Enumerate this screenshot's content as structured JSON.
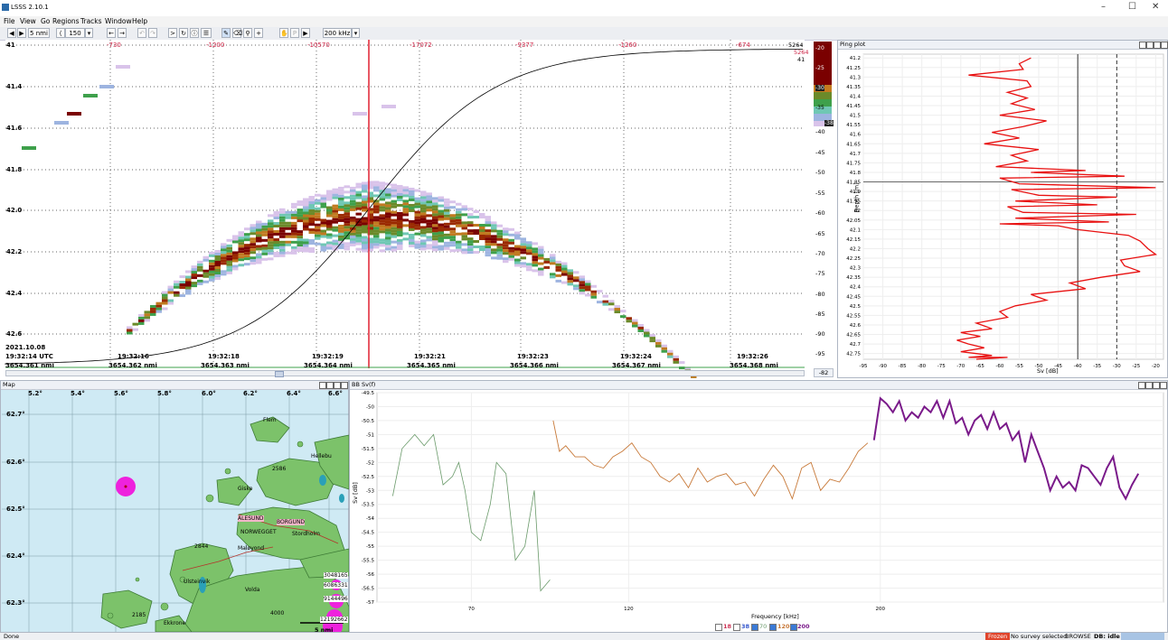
{
  "window": {
    "title": "LSSS 2.10.1",
    "controls": [
      "–",
      "☐",
      "✕"
    ]
  },
  "menu": [
    "File",
    "View",
    "Go",
    "Regions",
    "Tracks",
    "Window",
    "Help"
  ],
  "toolbar": {
    "range_nmi": "5 nmi",
    "range_m": "150 m",
    "frequency": "200 kHz"
  },
  "echogram": {
    "depth_ticks": [
      "41",
      "41.4",
      "41.6",
      "41.8",
      "42.0",
      "42.2",
      "42.4",
      "42.6"
    ],
    "top_counts": [
      "-730",
      "-1200",
      "-10570",
      "-17072",
      "-9377",
      "-1260",
      "-674"
    ],
    "date": "2021.10.08",
    "time_start": "19:32:14 UTC",
    "times": [
      "19:32:16",
      "19:32:18",
      "19:32:19",
      "19:32:21",
      "19:32:23",
      "19:32:24",
      "19:32:26"
    ],
    "dist_start": "3654.361 nmi",
    "distances": [
      "3654.362 nmi",
      "3654.363 nmi",
      "3654.364 nmi",
      "3654.365 nmi",
      "3654.366 nmi",
      "3654.367 nmi",
      "3654.368 nmi"
    ],
    "right_values": [
      "5264",
      "5264",
      "41"
    ]
  },
  "colorscale": {
    "ticks": [
      "-40",
      "-45",
      "-50",
      "-55",
      "-60",
      "-65",
      "-70",
      "-75",
      "-80",
      "-85",
      "-90",
      "-95"
    ],
    "markers": [
      "-20",
      "-25",
      "-30",
      "-35",
      "-38"
    ],
    "bottom": "-82"
  },
  "ping_plot": {
    "title": "Ping plot",
    "ylabel": "Depth [m]",
    "xlabel": "Sv [dB]",
    "y_ticks": [
      "41.2",
      "41.25",
      "41.3",
      "41.35",
      "41.4",
      "41.45",
      "41.5",
      "41.55",
      "41.6",
      "41.65",
      "41.7",
      "41.75",
      "41.8",
      "41.85",
      "41.9",
      "41.95",
      "42",
      "42.05",
      "42.1",
      "42.15",
      "42.2",
      "42.25",
      "42.3",
      "42.35",
      "42.4",
      "42.45",
      "42.5",
      "42.55",
      "42.6",
      "42.65",
      "42.7",
      "42.75"
    ],
    "x_ticks": [
      "-95",
      "-90",
      "-85",
      "-80",
      "-75",
      "-70",
      "-65",
      "-60",
      "-55",
      "-50",
      "-45",
      "-40",
      "-35",
      "-30",
      "-25",
      "-20"
    ]
  },
  "map": {
    "title": "Map",
    "lon_ticks": [
      "5.2°",
      "5.4°",
      "5.6°",
      "5.8°",
      "6.0°",
      "6.2°",
      "6.4°",
      "6.6°"
    ],
    "lat_ticks": [
      "62.7°",
      "62.6°",
      "62.5°",
      "62.4°",
      "62.3°"
    ],
    "places": [
      "Flem",
      "Hellebu",
      "Giske",
      "ALESUND",
      "BORGUND",
      "NORWEGGET",
      "Stordholm",
      "Maløyond",
      "Ulsteinvik",
      "Volda",
      "Ekkrone"
    ],
    "elevations": [
      "2586",
      "2844",
      "2185",
      "4000"
    ],
    "counts": [
      "3048165",
      "6086331",
      "9144496",
      "12192662"
    ],
    "scale": "5 nmi"
  },
  "bb_plot": {
    "title": "BB Sv(f)",
    "ylabel": "Sv [dB]",
    "xlabel": "Frequency [kHz]",
    "y_ticks": [
      "-49.5",
      "-50",
      "-50.5",
      "-51",
      "-51.5",
      "-52",
      "-52.5",
      "-53",
      "-53.5",
      "-54",
      "-54.5",
      "-55",
      "-55.5",
      "-56",
      "-56.5",
      "-57"
    ],
    "x_ticks": [
      "70",
      "120",
      "200"
    ],
    "legend": [
      {
        "label": "18",
        "color": "#cc3355",
        "checked": false
      },
      {
        "label": "38",
        "color": "#3355cc",
        "checked": false
      },
      {
        "label": "70",
        "color": "#6a9a6a",
        "checked": true
      },
      {
        "label": "120",
        "color": "#c87a3a",
        "checked": true
      },
      {
        "label": "200",
        "color": "#7a1a8a",
        "checked": true
      }
    ]
  },
  "chart_data": [
    {
      "type": "line",
      "title": "BB Sv(f)",
      "xlabel": "Frequency [kHz]",
      "ylabel": "Sv [dB]",
      "ylim": [
        -57,
        -49.5
      ],
      "series": [
        {
          "name": "70",
          "x": [
            45,
            48,
            52,
            55,
            58,
            61,
            64,
            66,
            68,
            70,
            73,
            76,
            78,
            81,
            84,
            87,
            90,
            92,
            95
          ],
          "y": [
            -53.2,
            -51.5,
            -51,
            -51.4,
            -51,
            -52.8,
            -52.5,
            -52,
            -53,
            -54.5,
            -54.8,
            -53.5,
            -52,
            -52.4,
            -55.5,
            -55,
            -53,
            -56.6,
            -56.2
          ]
        },
        {
          "name": "120",
          "x": [
            96,
            98,
            100,
            103,
            106,
            109,
            112,
            115,
            118,
            121,
            124,
            127,
            130,
            133,
            136,
            139,
            142,
            145,
            148,
            151,
            154,
            157,
            160,
            163,
            166,
            169,
            172,
            175,
            178,
            181,
            184,
            187,
            190,
            193,
            196
          ],
          "y": [
            -50.5,
            -51.6,
            -51.4,
            -51.8,
            -51.8,
            -52.1,
            -52.2,
            -51.8,
            -51.6,
            -51.3,
            -51.8,
            -52,
            -52.5,
            -52.7,
            -52.4,
            -52.9,
            -52.2,
            -52.7,
            -52.5,
            -52.4,
            -52.8,
            -52.7,
            -53.2,
            -52.6,
            -52.1,
            -52.5,
            -53.3,
            -52.2,
            -52,
            -53,
            -52.6,
            -52.7,
            -52.2,
            -51.6,
            -51.3
          ]
        },
        {
          "name": "200",
          "x": [
            198,
            200,
            202,
            204,
            206,
            208,
            210,
            212,
            214,
            216,
            218,
            220,
            222,
            224,
            226,
            228,
            230,
            232,
            234,
            236,
            238,
            240,
            242,
            244,
            246,
            248,
            250,
            252,
            254,
            256,
            258,
            260,
            262,
            264,
            266,
            268,
            270,
            272,
            274,
            276,
            278,
            280,
            282
          ],
          "y": [
            -51.2,
            -49.7,
            -49.9,
            -50.2,
            -49.8,
            -50.5,
            -50.2,
            -50.4,
            -50,
            -50.2,
            -49.8,
            -50.4,
            -49.8,
            -50.6,
            -50.4,
            -51,
            -50.5,
            -50.3,
            -50.8,
            -50.2,
            -50.8,
            -50.6,
            -51.2,
            -50.9,
            -52,
            -51,
            -51.6,
            -52.2,
            -53,
            -52.5,
            -52.9,
            -52.7,
            -53,
            -52.1,
            -52.2,
            -52.5,
            -52.8,
            -52.2,
            -51.8,
            -52.9,
            -53.3,
            -52.8,
            -52.4
          ]
        }
      ]
    },
    {
      "type": "line",
      "title": "Ping plot",
      "xlabel": "Sv [dB]",
      "ylabel": "Depth [m]",
      "xlim": [
        -95,
        -18
      ],
      "ylim": [
        41.18,
        42.78
      ],
      "series": [
        {
          "name": "Sv",
          "x": [
            -52,
            -55,
            -54,
            -68,
            -53,
            -52,
            -58,
            -53,
            -57,
            -51,
            -60,
            -48,
            -54,
            -62,
            -55,
            -64,
            -50,
            -57,
            -53,
            -61,
            -52,
            -60,
            -55,
            -57,
            -50,
            -56,
            -58,
            -54,
            -56,
            -60,
            -45,
            -38,
            -28,
            -20,
            -30,
            -35,
            -25,
            -32,
            -40,
            -27,
            -24,
            -22,
            -20,
            -29,
            -28,
            -24,
            -34,
            -42,
            -38,
            -52,
            -48,
            -56,
            -60,
            -58,
            -66,
            -62,
            -70,
            -65,
            -71,
            -68,
            -64,
            -70,
            -66,
            -62,
            -68,
            -58,
            -66
          ],
          "y": [
            41.2,
            41.23,
            41.26,
            41.29,
            41.32,
            41.35,
            41.38,
            41.41,
            41.44,
            41.47,
            41.5,
            41.53,
            41.56,
            41.59,
            41.62,
            41.65,
            41.68,
            41.71,
            41.74,
            41.77,
            41.8,
            41.83,
            41.86,
            41.89,
            41.92,
            41.95,
            41.98,
            42.01,
            42.04,
            42.07,
            42.08,
            41.79,
            41.82,
            41.88,
            41.93,
            41.97,
            42.02,
            42.06,
            42.1,
            42.13,
            42.16,
            42.2,
            42.23,
            42.26,
            42.29,
            42.32,
            42.35,
            42.38,
            42.41,
            42.44,
            42.47,
            42.5,
            42.53,
            42.56,
            42.59,
            42.62,
            42.64,
            42.66,
            42.68,
            42.7,
            42.72,
            42.74,
            42.75,
            42.76,
            42.77,
            42.77,
            42.78
          ]
        }
      ]
    }
  ],
  "status": {
    "left": "Done",
    "frozen": "Frozen",
    "survey": "No survey selected",
    "mode": "BROWSE",
    "db": "DB: idle"
  }
}
